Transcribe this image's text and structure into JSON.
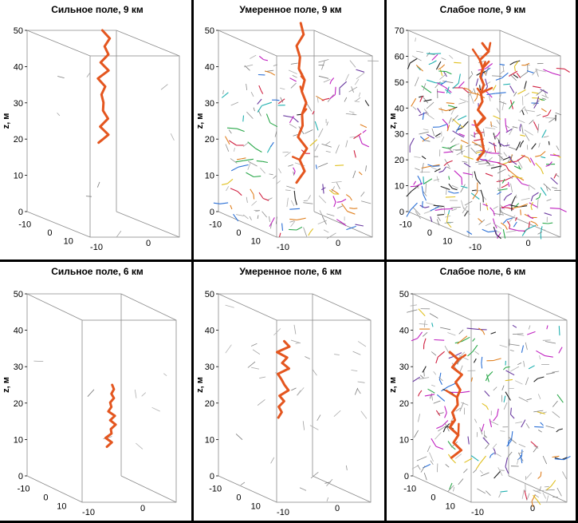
{
  "chart_data": [
    {
      "type": "scatter",
      "title": "Сильное поле, 9 км",
      "zlabel": "z, м",
      "zticks": [
        "0",
        "10",
        "20",
        "30",
        "40",
        "50"
      ],
      "zlim": [
        0,
        50
      ],
      "yticks": [
        "-10",
        "0",
        "10"
      ],
      "xticks": [
        "-10",
        "0",
        "10"
      ],
      "density": "sparse",
      "main_channel": {
        "color": "#E4561F",
        "z_range": [
          19,
          50
        ]
      }
    },
    {
      "type": "scatter",
      "title": "Умеренное поле, 9 км",
      "zlabel": "z, м",
      "zticks": [
        "0",
        "10",
        "20",
        "30",
        "40",
        "50"
      ],
      "zlim": [
        0,
        50
      ],
      "yticks": [
        "-10",
        "0",
        "10"
      ],
      "xticks": [
        "-10",
        "0",
        "10"
      ],
      "density": "medium",
      "main_channel": {
        "color": "#E4561F",
        "z_range": [
          8,
          52
        ]
      }
    },
    {
      "type": "scatter",
      "title": "Слабое поле, 9 км",
      "zlabel": "z, м",
      "zticks": [
        "0",
        "10",
        "20",
        "30",
        "40",
        "50",
        "60",
        "70"
      ],
      "zlim": [
        0,
        70
      ],
      "yticks": [
        "-10",
        "0",
        "10"
      ],
      "xticks": [
        "-10",
        "0",
        "10"
      ],
      "density": "dense",
      "main_channel": {
        "color": "#E4561F",
        "z_range": [
          20,
          65
        ]
      }
    },
    {
      "type": "scatter",
      "title": "Сильное поле, 6 км",
      "zlabel": "z, м",
      "zticks": [
        "0",
        "10",
        "20",
        "30",
        "40",
        "50"
      ],
      "zlim": [
        0,
        50
      ],
      "yticks": [
        "-10",
        "0",
        "10"
      ],
      "xticks": [
        "-10",
        "0",
        "10"
      ],
      "density": "sparse",
      "main_channel": {
        "color": "#E4561F",
        "z_range": [
          8,
          25
        ]
      }
    },
    {
      "type": "scatter",
      "title": "Умеренное поле, 6 км",
      "zlabel": "z, м",
      "zticks": [
        "0",
        "10",
        "20",
        "30",
        "40",
        "50"
      ],
      "zlim": [
        0,
        50
      ],
      "yticks": [
        "-10",
        "0",
        "10"
      ],
      "xticks": [
        "-10",
        "0",
        "10"
      ],
      "density": "light",
      "main_channel": {
        "color": "#E4561F",
        "z_range": [
          16,
          37
        ]
      }
    },
    {
      "type": "scatter",
      "title": "Слабое поле, 6 км",
      "zlabel": "z, м",
      "zticks": [
        "0",
        "10",
        "20",
        "30",
        "40",
        "50"
      ],
      "zlim": [
        0,
        50
      ],
      "yticks": [
        "-10",
        "0",
        "10"
      ],
      "xticks": [
        "-10",
        "0",
        "10"
      ],
      "density": "medium-dense",
      "main_channel": {
        "color": "#E4561F",
        "z_range": [
          5,
          34
        ]
      }
    }
  ],
  "colors": {
    "channel": "#E4561F",
    "box": "#8a8a8a",
    "segments": [
      "#8f8f8f",
      "#a0a0a0",
      "#7a7a7a",
      "#b0b0b0"
    ],
    "accents": [
      "#c020c0",
      "#2a6fd6",
      "#2aa84a",
      "#e0c020",
      "#20b0b0",
      "#d02040",
      "#6a3aa0",
      "#222222",
      "#e08020"
    ]
  }
}
